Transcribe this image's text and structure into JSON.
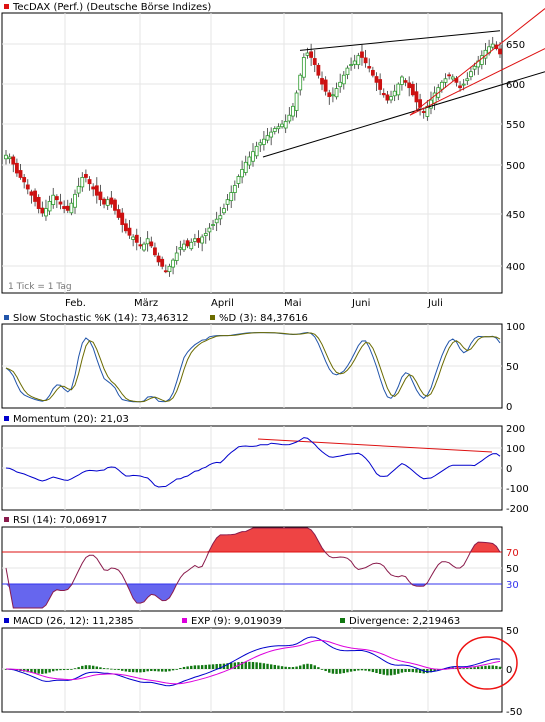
{
  "colors": {
    "frame": "#000000",
    "grid": "#e6e6e6",
    "candle_up": "#2e9a2e",
    "candle_down": "#cc1111",
    "trend_black": "#000000",
    "trend_red": "#dd1111",
    "stoch_k": "#2255aa",
    "stoch_d": "#6b6b00",
    "momentum": "#0000cc",
    "rsi_line": "#8a1b4c",
    "rsi_fill_high": "#ee4444",
    "rsi_fill_low": "#6666ee",
    "rsi_70": "#dd1111",
    "rsi_30": "#3333ee",
    "macd": "#0000cc",
    "exp": "#dd00dd",
    "divergence": "#117711",
    "annotation_circle": "#ee1111"
  },
  "price_panel": {
    "legend": {
      "label": "TecDAX (Perf.) (Deutsche Börse Indizes)",
      "swatch": "#dd1111"
    },
    "footnote": "1 Tick = 1 Tag",
    "y_ticks": [
      "650",
      "600",
      "550",
      "500",
      "450",
      "400"
    ],
    "x_ticks": [
      "Feb.",
      "März",
      "April",
      "Mai",
      "Juni",
      "Juli"
    ]
  },
  "stoch_panel": {
    "legend_k": {
      "label": "Slow Stochastic %K (14): 73,46312",
      "swatch": "#2255aa"
    },
    "legend_d": {
      "label": "%D (3): 84,37616",
      "swatch": "#6b6b00"
    },
    "y_ticks": [
      "100",
      "50",
      "0"
    ]
  },
  "momentum_panel": {
    "legend": {
      "label": "Momentum (20): 21,03",
      "swatch": "#0000cc"
    },
    "y_ticks": [
      "200",
      "100",
      "0",
      "-100",
      "-200"
    ]
  },
  "rsi_panel": {
    "legend": {
      "label": "RSI (14): 70,06917",
      "swatch": "#8a1b4c"
    },
    "y_ticks": [
      "70",
      "50",
      "30"
    ]
  },
  "macd_panel": {
    "legend_macd": {
      "label": "MACD (26, 12): 11,2385",
      "swatch": "#0000cc"
    },
    "legend_exp": {
      "label": "EXP (9): 9,019039",
      "swatch": "#dd00dd"
    },
    "legend_div": {
      "label": "Divergence: 2,219463",
      "swatch": "#117711"
    },
    "y_ticks": [
      "50",
      "0",
      "-50"
    ]
  },
  "chart_data": [
    {
      "type": "candlestick",
      "x_categories": [
        "Feb.",
        "März",
        "April",
        "Mai",
        "Juni",
        "Juli"
      ],
      "ylim": [
        375,
        690
      ],
      "y_ticks": [
        400,
        450,
        500,
        550,
        600,
        650
      ],
      "close_series": [
        530,
        528,
        520,
        510,
        505,
        500,
        492,
        485,
        478,
        470,
        465,
        470,
        478,
        485,
        480,
        475,
        470,
        468,
        476,
        486,
        495,
        505,
        505,
        498,
        492,
        485,
        480,
        475,
        480,
        475,
        468,
        460,
        452,
        445,
        440,
        438,
        432,
        428,
        430,
        436,
        428,
        418,
        410,
        405,
        400,
        405,
        412,
        420,
        426,
        430,
        428,
        432,
        436,
        432,
        438,
        442,
        448,
        452,
        458,
        462,
        470,
        480,
        488,
        496,
        506,
        514,
        522,
        528,
        534,
        540,
        544,
        548,
        552,
        556,
        560,
        562,
        565,
        568,
        575,
        585,
        600,
        620,
        640,
        645,
        640,
        632,
        620,
        610,
        602,
        596,
        598,
        605,
        612,
        620,
        628,
        632,
        636,
        642,
        640,
        634,
        628,
        620,
        612,
        604,
        598,
        592,
        596,
        602,
        610,
        618,
        612,
        606,
        598,
        590,
        584,
        578,
        585,
        592,
        600,
        606,
        612,
        616,
        620,
        618,
        612,
        606,
        610,
        616,
        624,
        630,
        636,
        642,
        648,
        652,
        655,
        650,
        644
      ],
      "trendlines": [
        {
          "color": "black",
          "from": [
            "Mai",
            648
          ],
          "to": [
            "Juli end",
            670
          ]
        },
        {
          "color": "black",
          "from": [
            "April end",
            528
          ],
          "to": [
            "Juli end",
            624
          ]
        },
        {
          "color": "red",
          "from": [
            "Juni end",
            575
          ],
          "to": [
            "Juli end",
            695
          ]
        },
        {
          "color": "red",
          "from": [
            "Juni end",
            575
          ],
          "to": [
            "Juli end",
            648
          ]
        }
      ]
    },
    {
      "type": "line",
      "name": "Slow Stochastic",
      "ylim": [
        0,
        100
      ],
      "y_ticks": [
        0,
        50,
        100
      ],
      "series": [
        {
          "name": "%K (14)",
          "last": 73.46312
        },
        {
          "name": "%D (3)",
          "last": 84.37616
        }
      ]
    },
    {
      "type": "line",
      "name": "Momentum (20)",
      "ylim": [
        -200,
        200
      ],
      "y_ticks": [
        -200,
        -100,
        0,
        100,
        200
      ],
      "last": 21.03
    },
    {
      "type": "line",
      "name": "RSI (14)",
      "ylim": [
        10,
        90
      ],
      "y_ticks": [
        30,
        50,
        70
      ],
      "levels": [
        70,
        30
      ],
      "last": 70.06917
    },
    {
      "type": "line",
      "name": "MACD",
      "ylim": [
        -50,
        50
      ],
      "y_ticks": [
        -50,
        0,
        50
      ],
      "series": [
        {
          "name": "MACD (26, 12)",
          "last": 11.2385
        },
        {
          "name": "EXP (9)",
          "last": 9.019039
        },
        {
          "name": "Divergence",
          "last": 2.219463
        }
      ]
    }
  ]
}
